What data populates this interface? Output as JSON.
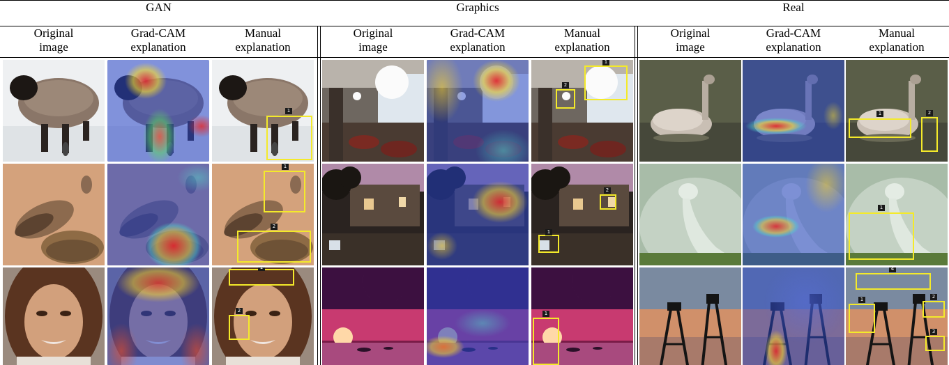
{
  "groups": [
    {
      "title": "GAN"
    },
    {
      "title": "Graphics"
    },
    {
      "title": "Real"
    }
  ],
  "column_headers": [
    {
      "line1": "Original",
      "line2": "image"
    },
    {
      "line1": "Grad-CAM",
      "line2": "explanation"
    },
    {
      "line1": "Manual",
      "line2": "explanation"
    }
  ],
  "box_labels": {
    "gan_sheep": [
      "1"
    ],
    "gan_bird": [
      "1",
      "2"
    ],
    "gan_face": [
      "1",
      "2"
    ],
    "gfx_interior": [
      "1",
      "2"
    ],
    "gfx_courtyard": [
      "1",
      "2"
    ],
    "gfx_sunset": [
      "1"
    ],
    "real_swan": [
      "1",
      "2"
    ],
    "real_peacock": [
      "1"
    ],
    "real_tower": [
      "4",
      "1",
      "2",
      "3"
    ]
  },
  "colors": {
    "box": "#f4ea2a",
    "rule": "#000000"
  }
}
